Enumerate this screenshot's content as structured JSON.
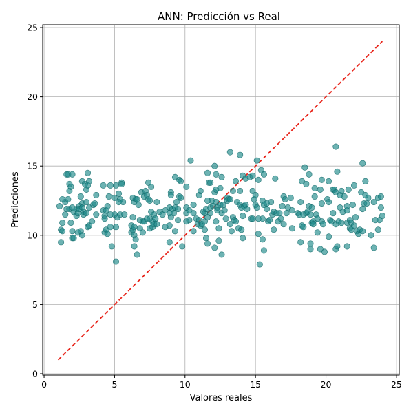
{
  "chart_data": {
    "type": "scatter",
    "title": "ANN: Predicción vs Real",
    "xlabel": "Valores reales",
    "ylabel": "Predicciones",
    "xlim": [
      -0.1,
      25.2
    ],
    "ylim": [
      -0.1,
      25.2
    ],
    "xticks": [
      0,
      5,
      10,
      15,
      20,
      25
    ],
    "yticks": [
      0,
      5,
      10,
      15,
      20,
      25
    ],
    "grid": true,
    "point_color": "#1f8a8a",
    "point_stroke": "#136a6a",
    "reference_line": {
      "x": [
        1,
        24
      ],
      "y": [
        1,
        24
      ],
      "style": "dashed",
      "color": "#e8251b"
    },
    "points": [
      [
        1.1,
        12.1
      ],
      [
        1.2,
        9.5
      ],
      [
        1.2,
        10.4
      ],
      [
        1.3,
        10.3
      ],
      [
        1.3,
        10.9
      ],
      [
        1.3,
        12.6
      ],
      [
        1.5,
        11.5
      ],
      [
        1.5,
        12.4
      ],
      [
        1.6,
        11.9
      ],
      [
        1.6,
        14.4
      ],
      [
        1.7,
        14.4
      ],
      [
        1.7,
        12.6
      ],
      [
        1.8,
        13.7
      ],
      [
        1.8,
        13.2
      ],
      [
        1.8,
        11.9
      ],
      [
        1.9,
        13.5
      ],
      [
        1.9,
        10.9
      ],
      [
        2.0,
        14.4
      ],
      [
        2.0,
        12.0
      ],
      [
        2.0,
        10.3
      ],
      [
        2.0,
        9.8
      ],
      [
        2.1,
        9.8
      ],
      [
        2.1,
        11.7
      ],
      [
        2.3,
        11.4
      ],
      [
        2.3,
        11.9
      ],
      [
        2.4,
        11.6
      ],
      [
        2.4,
        10.2
      ],
      [
        2.5,
        12.1
      ],
      [
        2.5,
        11.9
      ],
      [
        2.6,
        12.8
      ],
      [
        2.6,
        10.3
      ],
      [
        2.7,
        13.9
      ],
      [
        2.7,
        12.3
      ],
      [
        2.7,
        12.0
      ],
      [
        2.7,
        10.0
      ],
      [
        2.8,
        11.7
      ],
      [
        2.8,
        11.5
      ],
      [
        2.9,
        13.7
      ],
      [
        3.0,
        13.3
      ],
      [
        3.0,
        12.4
      ],
      [
        3.0,
        11.6
      ],
      [
        3.1,
        14.5
      ],
      [
        3.1,
        13.6
      ],
      [
        3.1,
        10.6
      ],
      [
        3.2,
        13.9
      ],
      [
        3.2,
        12.0
      ],
      [
        3.2,
        10.7
      ],
      [
        3.4,
        11.0
      ],
      [
        3.5,
        12.2
      ],
      [
        3.6,
        12.3
      ],
      [
        3.7,
        12.9
      ],
      [
        3.7,
        11.5
      ],
      [
        4.2,
        13.6
      ],
      [
        4.2,
        11.8
      ],
      [
        4.3,
        11.4
      ],
      [
        4.3,
        11.2
      ],
      [
        4.3,
        10.2
      ],
      [
        4.4,
        11.8
      ],
      [
        4.4,
        10.4
      ],
      [
        4.5,
        12.1
      ],
      [
        4.5,
        10.1
      ],
      [
        4.6,
        12.8
      ],
      [
        4.7,
        13.6
      ],
      [
        4.7,
        11.5
      ],
      [
        4.7,
        10.6
      ],
      [
        4.8,
        9.2
      ],
      [
        5.0,
        12.7
      ],
      [
        5.0,
        11.5
      ],
      [
        5.1,
        13.6
      ],
      [
        5.1,
        10.6
      ],
      [
        5.1,
        8.1
      ],
      [
        5.2,
        11.3
      ],
      [
        5.3,
        13.0
      ],
      [
        5.3,
        12.4
      ],
      [
        5.4,
        12.6
      ],
      [
        5.4,
        11.5
      ],
      [
        5.5,
        13.8
      ],
      [
        5.5,
        13.7
      ],
      [
        5.6,
        12.4
      ],
      [
        5.7,
        11.5
      ],
      [
        6.2,
        10.7
      ],
      [
        6.2,
        10.2
      ],
      [
        6.3,
        12.7
      ],
      [
        6.3,
        11.3
      ],
      [
        6.3,
        10.4
      ],
      [
        6.4,
        12.4
      ],
      [
        6.4,
        10.6
      ],
      [
        6.4,
        10.0
      ],
      [
        6.4,
        9.2
      ],
      [
        6.5,
        12.6
      ],
      [
        6.5,
        9.7
      ],
      [
        6.6,
        8.6
      ],
      [
        6.6,
        12.6
      ],
      [
        6.7,
        12.2
      ],
      [
        6.8,
        11.1
      ],
      [
        6.8,
        10.5
      ],
      [
        6.9,
        13.1
      ],
      [
        7.0,
        11.0
      ],
      [
        7.0,
        10.2
      ],
      [
        7.1,
        12.8
      ],
      [
        7.1,
        11.0
      ],
      [
        7.2,
        13.2
      ],
      [
        7.3,
        12.9
      ],
      [
        7.3,
        11.2
      ],
      [
        7.4,
        13.8
      ],
      [
        7.4,
        12.6
      ],
      [
        7.5,
        12.5
      ],
      [
        7.5,
        11.2
      ],
      [
        7.5,
        10.5
      ],
      [
        7.6,
        13.5
      ],
      [
        7.6,
        11.7
      ],
      [
        7.7,
        11.0
      ],
      [
        7.7,
        10.6
      ],
      [
        7.8,
        11.5
      ],
      [
        7.8,
        10.8
      ],
      [
        7.9,
        11.2
      ],
      [
        8.0,
        12.4
      ],
      [
        8.0,
        10.8
      ],
      [
        8.2,
        11.7
      ],
      [
        8.4,
        11.5
      ],
      [
        8.6,
        11.8
      ],
      [
        8.6,
        10.6
      ],
      [
        8.9,
        12.0
      ],
      [
        8.9,
        11.6
      ],
      [
        8.9,
        10.7
      ],
      [
        8.9,
        9.5
      ],
      [
        9.0,
        13.1
      ],
      [
        9.0,
        12.9
      ],
      [
        9.0,
        11.3
      ],
      [
        9.1,
        11.9
      ],
      [
        9.2,
        11.6
      ],
      [
        9.3,
        14.2
      ],
      [
        9.3,
        12.0
      ],
      [
        9.3,
        10.3
      ],
      [
        9.4,
        12.4
      ],
      [
        9.5,
        11.9
      ],
      [
        9.5,
        11.1
      ],
      [
        9.6,
        14.0
      ],
      [
        9.6,
        12.8
      ],
      [
        9.7,
        13.9
      ],
      [
        9.7,
        12.7
      ],
      [
        9.8,
        9.2
      ],
      [
        10.1,
        13.5
      ],
      [
        10.1,
        12.0
      ],
      [
        10.1,
        11.6
      ],
      [
        10.1,
        11.0
      ],
      [
        10.3,
        11.8
      ],
      [
        10.3,
        11.1
      ],
      [
        10.4,
        15.4
      ],
      [
        10.6,
        12.2
      ],
      [
        10.6,
        11.6
      ],
      [
        10.6,
        10.3
      ],
      [
        10.8,
        11.2
      ],
      [
        10.9,
        10.8
      ],
      [
        11.0,
        12.9
      ],
      [
        11.0,
        11.1
      ],
      [
        11.1,
        13.2
      ],
      [
        11.1,
        10.7
      ],
      [
        11.2,
        10.8
      ],
      [
        11.3,
        11.7
      ],
      [
        11.4,
        11.6
      ],
      [
        11.4,
        11.0
      ],
      [
        11.4,
        10.4
      ],
      [
        11.5,
        11.9
      ],
      [
        11.5,
        9.8
      ],
      [
        11.6,
        14.5
      ],
      [
        11.6,
        12.5
      ],
      [
        11.6,
        11.3
      ],
      [
        11.6,
        9.4
      ],
      [
        11.7,
        13.8
      ],
      [
        11.8,
        13.8
      ],
      [
        11.8,
        12.0
      ],
      [
        11.8,
        11.6
      ],
      [
        11.9,
        12.5
      ],
      [
        12.0,
        12.1
      ],
      [
        12.1,
        15.0
      ],
      [
        12.1,
        13.1
      ],
      [
        12.1,
        9.1
      ],
      [
        12.2,
        14.4
      ],
      [
        12.2,
        13.3
      ],
      [
        12.2,
        12.4
      ],
      [
        12.2,
        11.0
      ],
      [
        12.3,
        12.0
      ],
      [
        12.3,
        11.8
      ],
      [
        12.4,
        10.5
      ],
      [
        12.4,
        9.6
      ],
      [
        12.5,
        13.4
      ],
      [
        12.5,
        12.2
      ],
      [
        12.6,
        14.2
      ],
      [
        12.6,
        11.6
      ],
      [
        12.6,
        8.6
      ],
      [
        12.7,
        12.2
      ],
      [
        12.8,
        11.8
      ],
      [
        12.9,
        11.2
      ],
      [
        13.0,
        12.7
      ],
      [
        13.0,
        12.5
      ],
      [
        13.1,
        12.6
      ],
      [
        13.2,
        16.0
      ],
      [
        13.2,
        12.6
      ],
      [
        13.2,
        10.8
      ],
      [
        13.3,
        10.3
      ],
      [
        13.4,
        13.2
      ],
      [
        13.4,
        11.3
      ],
      [
        13.5,
        11.1
      ],
      [
        13.6,
        13.9
      ],
      [
        13.6,
        11.0
      ],
      [
        13.7,
        12.4
      ],
      [
        13.8,
        10.5
      ],
      [
        13.9,
        15.8
      ],
      [
        13.9,
        13.2
      ],
      [
        13.9,
        12.2
      ],
      [
        14.0,
        12.0
      ],
      [
        14.0,
        10.4
      ],
      [
        14.1,
        14.3
      ],
      [
        14.1,
        11.4
      ],
      [
        14.1,
        9.8
      ],
      [
        14.2,
        12.1
      ],
      [
        14.3,
        12.2
      ],
      [
        14.3,
        14.1
      ],
      [
        14.4,
        11.9
      ],
      [
        14.6,
        14.2
      ],
      [
        14.7,
        11.2
      ],
      [
        14.8,
        13.2
      ],
      [
        14.8,
        11.2
      ],
      [
        14.8,
        14.3
      ],
      [
        14.9,
        12.6
      ],
      [
        15.0,
        12.9
      ],
      [
        15.0,
        12.2
      ],
      [
        15.1,
        15.4
      ],
      [
        15.1,
        12.0
      ],
      [
        15.2,
        14.0
      ],
      [
        15.2,
        11.2
      ],
      [
        15.2,
        10.1
      ],
      [
        15.3,
        7.9
      ],
      [
        15.4,
        14.7
      ],
      [
        15.5,
        12.5
      ],
      [
        15.5,
        11.2
      ],
      [
        15.5,
        9.7
      ],
      [
        15.6,
        14.4
      ],
      [
        15.6,
        12.2
      ],
      [
        15.6,
        8.9
      ],
      [
        15.8,
        12.3
      ],
      [
        15.8,
        11.9
      ],
      [
        15.9,
        11.0
      ],
      [
        16.0,
        11.1
      ],
      [
        16.1,
        12.4
      ],
      [
        16.2,
        11.5
      ],
      [
        16.3,
        11.7
      ],
      [
        16.3,
        10.4
      ],
      [
        16.4,
        14.1
      ],
      [
        16.5,
        11.6
      ],
      [
        16.6,
        11.0
      ],
      [
        16.7,
        11.6
      ],
      [
        16.8,
        11.2
      ],
      [
        16.9,
        12.1
      ],
      [
        17.0,
        10.8
      ],
      [
        17.0,
        12.8
      ],
      [
        17.1,
        12.6
      ],
      [
        17.2,
        11.6
      ],
      [
        17.3,
        12.0
      ],
      [
        17.5,
        12.7
      ],
      [
        17.6,
        11.8
      ],
      [
        17.6,
        10.5
      ],
      [
        18.0,
        11.6
      ],
      [
        18.1,
        11.5
      ],
      [
        18.2,
        12.4
      ],
      [
        18.2,
        9.5
      ],
      [
        18.3,
        13.9
      ],
      [
        18.3,
        10.7
      ],
      [
        18.4,
        11.5
      ],
      [
        18.4,
        10.6
      ],
      [
        18.5,
        14.9
      ],
      [
        18.6,
        11.6
      ],
      [
        18.6,
        13.7
      ],
      [
        18.7,
        11.7
      ],
      [
        18.8,
        14.4
      ],
      [
        18.8,
        12.1
      ],
      [
        18.9,
        11.5
      ],
      [
        18.9,
        9.4
      ],
      [
        18.9,
        9.0
      ],
      [
        19.0,
        12.0
      ],
      [
        19.0,
        10.9
      ],
      [
        19.1,
        11.0
      ],
      [
        19.1,
        10.8
      ],
      [
        19.2,
        13.4
      ],
      [
        19.2,
        12.8
      ],
      [
        19.3,
        11.5
      ],
      [
        19.4,
        11.2
      ],
      [
        19.4,
        10.2
      ],
      [
        19.6,
        13.3
      ],
      [
        19.6,
        9.0
      ],
      [
        19.7,
        14.0
      ],
      [
        19.7,
        11.0
      ],
      [
        19.7,
        12.3
      ],
      [
        19.8,
        10.8
      ],
      [
        19.9,
        8.8
      ],
      [
        20.1,
        12.6
      ],
      [
        20.2,
        9.9
      ],
      [
        20.2,
        13.9
      ],
      [
        20.2,
        12.4
      ],
      [
        20.3,
        11.1
      ],
      [
        20.4,
        11.0
      ],
      [
        20.5,
        13.3
      ],
      [
        20.5,
        11.6
      ],
      [
        20.6,
        13.3
      ],
      [
        20.7,
        16.4
      ],
      [
        20.7,
        13.1
      ],
      [
        20.7,
        10.8
      ],
      [
        20.7,
        9.0
      ],
      [
        20.8,
        14.6
      ],
      [
        20.8,
        9.2
      ],
      [
        20.9,
        11.0
      ],
      [
        21.0,
        12.9
      ],
      [
        21.0,
        12.0
      ],
      [
        21.1,
        13.2
      ],
      [
        21.1,
        10.9
      ],
      [
        21.2,
        11.7
      ],
      [
        21.3,
        12.8
      ],
      [
        21.5,
        11.8
      ],
      [
        21.5,
        12.1
      ],
      [
        21.5,
        10.9
      ],
      [
        21.5,
        9.2
      ],
      [
        21.6,
        13.3
      ],
      [
        21.7,
        11.1
      ],
      [
        21.7,
        10.5
      ],
      [
        21.8,
        10.9
      ],
      [
        21.8,
        10.4
      ],
      [
        21.9,
        12.2
      ],
      [
        22.0,
        10.7
      ],
      [
        22.0,
        13.6
      ],
      [
        22.1,
        11.3
      ],
      [
        22.2,
        10.3
      ],
      [
        22.3,
        10.1
      ],
      [
        22.4,
        10.4
      ],
      [
        22.5,
        13.1
      ],
      [
        22.6,
        11.9
      ],
      [
        22.6,
        15.2
      ],
      [
        22.6,
        10.3
      ],
      [
        22.7,
        12.3
      ],
      [
        22.8,
        12.9
      ],
      [
        22.8,
        13.9
      ],
      [
        22.9,
        12.3
      ],
      [
        23.0,
        12.7
      ],
      [
        23.2,
        10.0
      ],
      [
        23.4,
        9.1
      ],
      [
        23.4,
        12.4
      ],
      [
        23.5,
        11.1
      ],
      [
        23.7,
        10.4
      ],
      [
        23.7,
        12.7
      ],
      [
        23.8,
        11.1
      ],
      [
        23.9,
        12.8
      ],
      [
        23.9,
        12.0
      ],
      [
        24.0,
        11.4
      ]
    ]
  }
}
